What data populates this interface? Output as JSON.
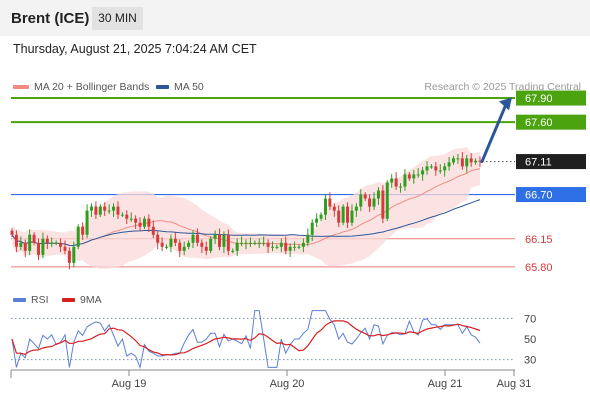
{
  "header": {
    "instrument": "Brent (ICE)",
    "timeframe": "30 MIN"
  },
  "datetime": "Thursday, August 21, 2025 7:04:24 AM CET",
  "legend": {
    "ma20": {
      "label": "MA 20 + Bollinger Bands",
      "color": "#f28b82"
    },
    "ma50": {
      "label": "MA 50",
      "color": "#2b5797"
    }
  },
  "credit": "Research © 2025 Trading Central",
  "rsi_legend": {
    "rsi": {
      "label": "RSI",
      "color": "#5b7fd6"
    },
    "ma9": {
      "label": "9MA",
      "color": "#d62020"
    }
  },
  "colors": {
    "up": "#2e9e1f",
    "down": "#d63a3a",
    "target": "#4aa30f",
    "pivot": "#2f6fe6",
    "support": "#f07a7a",
    "arrow": "#2b5797"
  },
  "chart_data": [
    {
      "type": "candlestick",
      "x_tick_labels": [
        "Aug 19",
        "Aug 20",
        "Aug 21",
        "Aug 31"
      ],
      "ylim": [
        65.6,
        68.0
      ],
      "levels": [
        {
          "value": 67.9,
          "label": "67.90",
          "kind": "resistance"
        },
        {
          "value": 67.6,
          "label": "67.60",
          "kind": "resistance"
        },
        {
          "value": 67.11,
          "label": "67.11",
          "kind": "last"
        },
        {
          "value": 66.7,
          "label": "66.70",
          "kind": "pivot"
        },
        {
          "value": 66.15,
          "label": "66.15",
          "kind": "support"
        },
        {
          "value": 65.8,
          "label": "65.80",
          "kind": "support"
        }
      ],
      "close_series": [
        66.2,
        66.05,
        66.1,
        66.0,
        66.2,
        66.1,
        65.95,
        66.15,
        66.1,
        66.1,
        66.1,
        66.05,
        66.0,
        65.85,
        66.05,
        66.3,
        66.2,
        66.5,
        66.55,
        66.45,
        66.55,
        66.5,
        66.5,
        66.55,
        66.45,
        66.45,
        66.4,
        66.4,
        66.35,
        66.3,
        66.4,
        66.3,
        66.2,
        66.1,
        66.05,
        66.05,
        66.15,
        66.1,
        66.0,
        66.05,
        66.1,
        66.2,
        66.1,
        66.05,
        66.0,
        66.15,
        66.2,
        66.05,
        66.2,
        66.0,
        66.0,
        66.1,
        66.1,
        66.1,
        66.1,
        66.1,
        66.1,
        66.1,
        66.05,
        66.05,
        66.05,
        66.1,
        66.0,
        66.05,
        66.05,
        66.05,
        66.1,
        66.2,
        66.35,
        66.4,
        66.45,
        66.65,
        66.55,
        66.5,
        66.35,
        66.55,
        66.35,
        66.5,
        66.55,
        66.7,
        66.65,
        66.55,
        66.65,
        66.75,
        66.4,
        66.85,
        66.9,
        66.8,
        66.8,
        66.95,
        66.9,
        66.95,
        66.95,
        67.0,
        67.05,
        67.05,
        67.0,
        67.0,
        67.05,
        67.1,
        67.15,
        67.15,
        67.05,
        67.15,
        67.1,
        67.12,
        67.11
      ],
      "rsi": {
        "ylim": [
          20,
          80
        ],
        "ticks": [
          70,
          50,
          30
        ],
        "guide_levels": [
          70,
          30
        ]
      }
    }
  ]
}
